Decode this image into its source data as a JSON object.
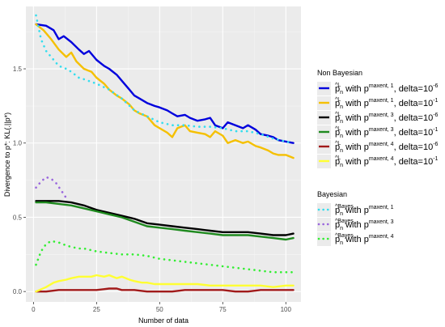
{
  "chart_data": {
    "type": "line",
    "xlabel": "Number of data",
    "ylabel": "Divergence to p*: KL(.||p*)",
    "xlim": [
      -3,
      106
    ],
    "ylim": [
      -0.07,
      1.92
    ],
    "xticks": [
      0,
      25,
      50,
      75,
      100
    ],
    "yticks": [
      0.0,
      0.5,
      1.0,
      1.5
    ],
    "xtick_labels": [
      "0",
      "25",
      "50",
      "75",
      "100"
    ],
    "ytick_labels": [
      "0.0",
      "0.5",
      "1.0",
      "1.5"
    ],
    "grid": true,
    "legend_position": "right",
    "legend_groups": [
      {
        "title": "Non Bayesian",
        "entries": [
          {
            "hat": "^L",
            "sub": "n",
            "with": " with p",
            "sup": "maxent, 1",
            "tail": ", delta=10",
            "exp": "-6",
            "series": 0
          },
          {
            "hat": "^L",
            "sub": "n",
            "with": " with p",
            "sup": "maxent, 1",
            "tail": ", delta=10",
            "exp": "-1",
            "series": 1
          },
          {
            "hat": "^L",
            "sub": "n",
            "with": " with p",
            "sup": "maxent, 3",
            "tail": ", delta=10",
            "exp": "-6",
            "series": 2
          },
          {
            "hat": "^L",
            "sub": "n",
            "with": " with p",
            "sup": "maxent, 3",
            "tail": ", delta=10",
            "exp": "-1",
            "series": 3
          },
          {
            "hat": "^L",
            "sub": "n",
            "with": " with p",
            "sup": "maxent, 4",
            "tail": ", delta=10",
            "exp": "-6",
            "series": 4
          },
          {
            "hat": "^L",
            "sub": "n",
            "with": " with p",
            "sup": "maxent, 4",
            "tail": ", delta=10",
            "exp": "-1",
            "series": 5
          }
        ]
      },
      {
        "title": "Bayesian",
        "entries": [
          {
            "hat": "^Bayes",
            "sub": "n",
            "with": " with p",
            "sup": "maxent, 1",
            "tail": "",
            "exp": "",
            "series": 6
          },
          {
            "hat": "^Bayes",
            "sub": "n",
            "with": " with p",
            "sup": "maxent, 3",
            "tail": "",
            "exp": "",
            "series": 7
          },
          {
            "hat": "^Bayes",
            "sub": "n",
            "with": " with p",
            "sup": "maxent, 4",
            "tail": "",
            "exp": "",
            "series": 8
          }
        ]
      }
    ],
    "series": [
      {
        "color": "#0000dd",
        "dash": "solid",
        "points": [
          [
            1,
            1.8
          ],
          [
            5,
            1.79
          ],
          [
            8,
            1.76
          ],
          [
            10,
            1.7
          ],
          [
            12,
            1.72
          ],
          [
            15,
            1.68
          ],
          [
            18,
            1.63
          ],
          [
            20,
            1.6
          ],
          [
            22,
            1.62
          ],
          [
            25,
            1.56
          ],
          [
            28,
            1.52
          ],
          [
            30,
            1.5
          ],
          [
            33,
            1.46
          ],
          [
            35,
            1.42
          ],
          [
            38,
            1.36
          ],
          [
            40,
            1.32
          ],
          [
            42,
            1.3
          ],
          [
            45,
            1.27
          ],
          [
            48,
            1.25
          ],
          [
            50,
            1.24
          ],
          [
            53,
            1.22
          ],
          [
            55,
            1.2
          ],
          [
            57,
            1.18
          ],
          [
            60,
            1.19
          ],
          [
            62,
            1.17
          ],
          [
            65,
            1.15
          ],
          [
            68,
            1.16
          ],
          [
            70,
            1.17
          ],
          [
            72,
            1.12
          ],
          [
            75,
            1.1
          ],
          [
            77,
            1.14
          ],
          [
            80,
            1.12
          ],
          [
            83,
            1.1
          ],
          [
            85,
            1.12
          ],
          [
            88,
            1.09
          ],
          [
            90,
            1.06
          ],
          [
            93,
            1.05
          ],
          [
            95,
            1.04
          ],
          [
            97,
            1.02
          ],
          [
            100,
            1.01
          ],
          [
            103,
            1.0
          ]
        ]
      },
      {
        "color": "#f5c000",
        "dash": "solid",
        "points": [
          [
            1,
            1.8
          ],
          [
            4,
            1.76
          ],
          [
            7,
            1.7
          ],
          [
            10,
            1.63
          ],
          [
            13,
            1.58
          ],
          [
            15,
            1.61
          ],
          [
            17,
            1.55
          ],
          [
            20,
            1.5
          ],
          [
            23,
            1.48
          ],
          [
            25,
            1.44
          ],
          [
            28,
            1.4
          ],
          [
            30,
            1.36
          ],
          [
            33,
            1.32
          ],
          [
            35,
            1.3
          ],
          [
            38,
            1.26
          ],
          [
            40,
            1.22
          ],
          [
            42,
            1.2
          ],
          [
            45,
            1.18
          ],
          [
            48,
            1.12
          ],
          [
            50,
            1.1
          ],
          [
            53,
            1.07
          ],
          [
            55,
            1.04
          ],
          [
            57,
            1.1
          ],
          [
            60,
            1.12
          ],
          [
            62,
            1.08
          ],
          [
            65,
            1.07
          ],
          [
            68,
            1.06
          ],
          [
            70,
            1.04
          ],
          [
            72,
            1.08
          ],
          [
            75,
            1.05
          ],
          [
            77,
            1.0
          ],
          [
            80,
            1.02
          ],
          [
            83,
            1.0
          ],
          [
            85,
            1.01
          ],
          [
            88,
            0.98
          ],
          [
            90,
            0.97
          ],
          [
            93,
            0.95
          ],
          [
            95,
            0.93
          ],
          [
            97,
            0.92
          ],
          [
            100,
            0.92
          ],
          [
            103,
            0.9
          ]
        ]
      },
      {
        "color": "#000000",
        "dash": "solid",
        "points": [
          [
            1,
            0.61
          ],
          [
            5,
            0.61
          ],
          [
            10,
            0.61
          ],
          [
            15,
            0.6
          ],
          [
            20,
            0.58
          ],
          [
            25,
            0.55
          ],
          [
            30,
            0.53
          ],
          [
            35,
            0.51
          ],
          [
            40,
            0.49
          ],
          [
            45,
            0.46
          ],
          [
            50,
            0.45
          ],
          [
            55,
            0.44
          ],
          [
            60,
            0.43
          ],
          [
            65,
            0.42
          ],
          [
            70,
            0.41
          ],
          [
            75,
            0.4
          ],
          [
            80,
            0.4
          ],
          [
            85,
            0.4
          ],
          [
            90,
            0.39
          ],
          [
            95,
            0.38
          ],
          [
            100,
            0.38
          ],
          [
            103,
            0.39
          ]
        ]
      },
      {
        "color": "#1f8a1f",
        "dash": "solid",
        "points": [
          [
            1,
            0.6
          ],
          [
            5,
            0.6
          ],
          [
            10,
            0.59
          ],
          [
            15,
            0.58
          ],
          [
            20,
            0.56
          ],
          [
            25,
            0.54
          ],
          [
            30,
            0.52
          ],
          [
            35,
            0.5
          ],
          [
            40,
            0.47
          ],
          [
            45,
            0.44
          ],
          [
            50,
            0.43
          ],
          [
            55,
            0.42
          ],
          [
            60,
            0.41
          ],
          [
            65,
            0.4
          ],
          [
            70,
            0.39
          ],
          [
            75,
            0.38
          ],
          [
            80,
            0.38
          ],
          [
            85,
            0.38
          ],
          [
            90,
            0.37
          ],
          [
            95,
            0.36
          ],
          [
            100,
            0.35
          ],
          [
            103,
            0.36
          ]
        ]
      },
      {
        "color": "#a11a1a",
        "dash": "solid",
        "points": [
          [
            1,
            0.0
          ],
          [
            5,
            0.0
          ],
          [
            10,
            0.01
          ],
          [
            15,
            0.01
          ],
          [
            20,
            0.01
          ],
          [
            25,
            0.01
          ],
          [
            30,
            0.02
          ],
          [
            33,
            0.02
          ],
          [
            35,
            0.01
          ],
          [
            40,
            0.01
          ],
          [
            45,
            0.0
          ],
          [
            50,
            0.0
          ],
          [
            55,
            0.0
          ],
          [
            60,
            0.01
          ],
          [
            65,
            0.01
          ],
          [
            70,
            0.01
          ],
          [
            75,
            0.01
          ],
          [
            80,
            0.0
          ],
          [
            85,
            0.0
          ],
          [
            90,
            0.01
          ],
          [
            95,
            0.01
          ],
          [
            100,
            0.01
          ],
          [
            103,
            0.01
          ]
        ]
      },
      {
        "color": "#ffff33",
        "dash": "solid",
        "points": [
          [
            1,
            0.0
          ],
          [
            5,
            0.03
          ],
          [
            8,
            0.06
          ],
          [
            10,
            0.07
          ],
          [
            13,
            0.08
          ],
          [
            15,
            0.09
          ],
          [
            18,
            0.1
          ],
          [
            20,
            0.1
          ],
          [
            23,
            0.1
          ],
          [
            25,
            0.11
          ],
          [
            28,
            0.1
          ],
          [
            30,
            0.11
          ],
          [
            33,
            0.09
          ],
          [
            35,
            0.1
          ],
          [
            38,
            0.08
          ],
          [
            40,
            0.07
          ],
          [
            43,
            0.06
          ],
          [
            45,
            0.06
          ],
          [
            48,
            0.05
          ],
          [
            50,
            0.05
          ],
          [
            55,
            0.05
          ],
          [
            60,
            0.05
          ],
          [
            65,
            0.05
          ],
          [
            70,
            0.04
          ],
          [
            75,
            0.04
          ],
          [
            80,
            0.04
          ],
          [
            85,
            0.04
          ],
          [
            90,
            0.04
          ],
          [
            95,
            0.03
          ],
          [
            100,
            0.04
          ],
          [
            103,
            0.04
          ]
        ]
      },
      {
        "color": "#33ddee",
        "dash": "dotted",
        "points": [
          [
            1,
            1.86
          ],
          [
            3,
            1.7
          ],
          [
            5,
            1.62
          ],
          [
            8,
            1.56
          ],
          [
            10,
            1.52
          ],
          [
            13,
            1.5
          ],
          [
            15,
            1.48
          ],
          [
            18,
            1.44
          ],
          [
            20,
            1.43
          ],
          [
            25,
            1.4
          ],
          [
            30,
            1.36
          ],
          [
            35,
            1.3
          ],
          [
            40,
            1.22
          ],
          [
            45,
            1.18
          ],
          [
            50,
            1.14
          ],
          [
            55,
            1.12
          ],
          [
            60,
            1.12
          ],
          [
            65,
            1.11
          ],
          [
            70,
            1.11
          ],
          [
            75,
            1.1
          ],
          [
            80,
            1.08
          ],
          [
            85,
            1.08
          ],
          [
            90,
            1.06
          ],
          [
            95,
            1.03
          ],
          [
            100,
            1.01
          ],
          [
            103,
            1.0
          ]
        ]
      },
      {
        "color": "#9966dd",
        "dash": "dotted",
        "points": [
          [
            1,
            0.7
          ],
          [
            3,
            0.74
          ],
          [
            5,
            0.77
          ],
          [
            7,
            0.76
          ],
          [
            9,
            0.73
          ],
          [
            11,
            0.68
          ],
          [
            13,
            0.63
          ]
        ]
      },
      {
        "color": "#33ee33",
        "dash": "dotted",
        "points": [
          [
            1,
            0.18
          ],
          [
            3,
            0.27
          ],
          [
            5,
            0.32
          ],
          [
            7,
            0.34
          ],
          [
            10,
            0.33
          ],
          [
            13,
            0.31
          ],
          [
            15,
            0.3
          ],
          [
            18,
            0.29
          ],
          [
            20,
            0.29
          ],
          [
            25,
            0.27
          ],
          [
            30,
            0.26
          ],
          [
            35,
            0.25
          ],
          [
            40,
            0.25
          ],
          [
            45,
            0.24
          ],
          [
            50,
            0.22
          ],
          [
            55,
            0.21
          ],
          [
            60,
            0.2
          ],
          [
            65,
            0.19
          ],
          [
            70,
            0.18
          ],
          [
            75,
            0.17
          ],
          [
            80,
            0.16
          ],
          [
            85,
            0.15
          ],
          [
            90,
            0.14
          ],
          [
            95,
            0.13
          ],
          [
            100,
            0.13
          ],
          [
            103,
            0.13
          ]
        ]
      }
    ]
  }
}
